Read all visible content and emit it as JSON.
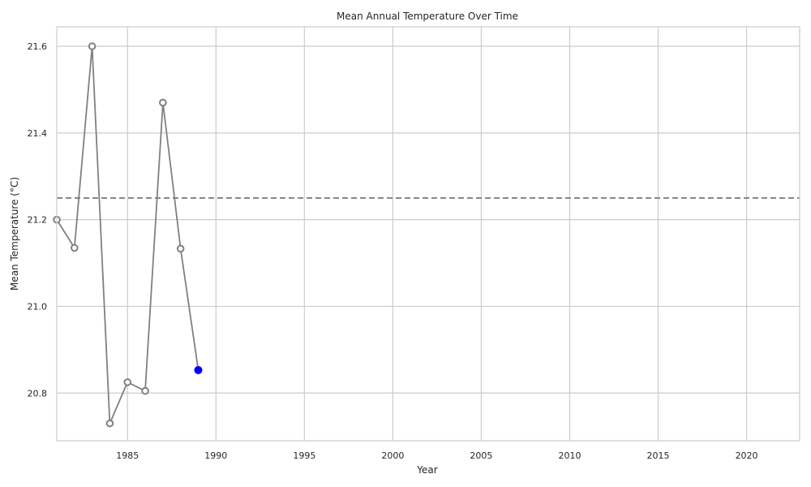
{
  "chart_data": {
    "type": "line",
    "title": "Mean Annual Temperature Over Time",
    "xlabel": "Year",
    "ylabel": "Mean Temperature (°C)",
    "xlim": [
      1981,
      2023
    ],
    "ylim": [
      20.69,
      21.645
    ],
    "xticks": [
      1985,
      1990,
      1995,
      2000,
      2005,
      2010,
      2015,
      2020
    ],
    "xtick_labels": [
      "1985",
      "1990",
      "1995",
      "2000",
      "2005",
      "2010",
      "2015",
      "2020"
    ],
    "yticks": [
      20.8,
      21.0,
      21.2,
      21.4,
      21.6
    ],
    "ytick_labels": [
      "20.8",
      "21.0",
      "21.2",
      "21.4",
      "21.6"
    ],
    "grid": true,
    "series": [
      {
        "x": [
          1981,
          1982,
          1983,
          1984,
          1985,
          1986,
          1987,
          1988,
          1989
        ],
        "values": [
          21.2,
          21.135,
          21.6,
          20.73,
          20.825,
          20.805,
          21.47,
          21.133,
          20.853
        ]
      }
    ],
    "highlight_point": {
      "x": 1989,
      "y": 20.853
    },
    "reference_line": {
      "y": 21.25,
      "style": "dashed"
    },
    "colors": {
      "line": "#808080",
      "marker_edge": "#808080",
      "marker_face": "#ffffff",
      "highlight": "#0000ff",
      "reference": "#808080",
      "grid": "#cccccc",
      "frame": "#cccccc"
    }
  }
}
